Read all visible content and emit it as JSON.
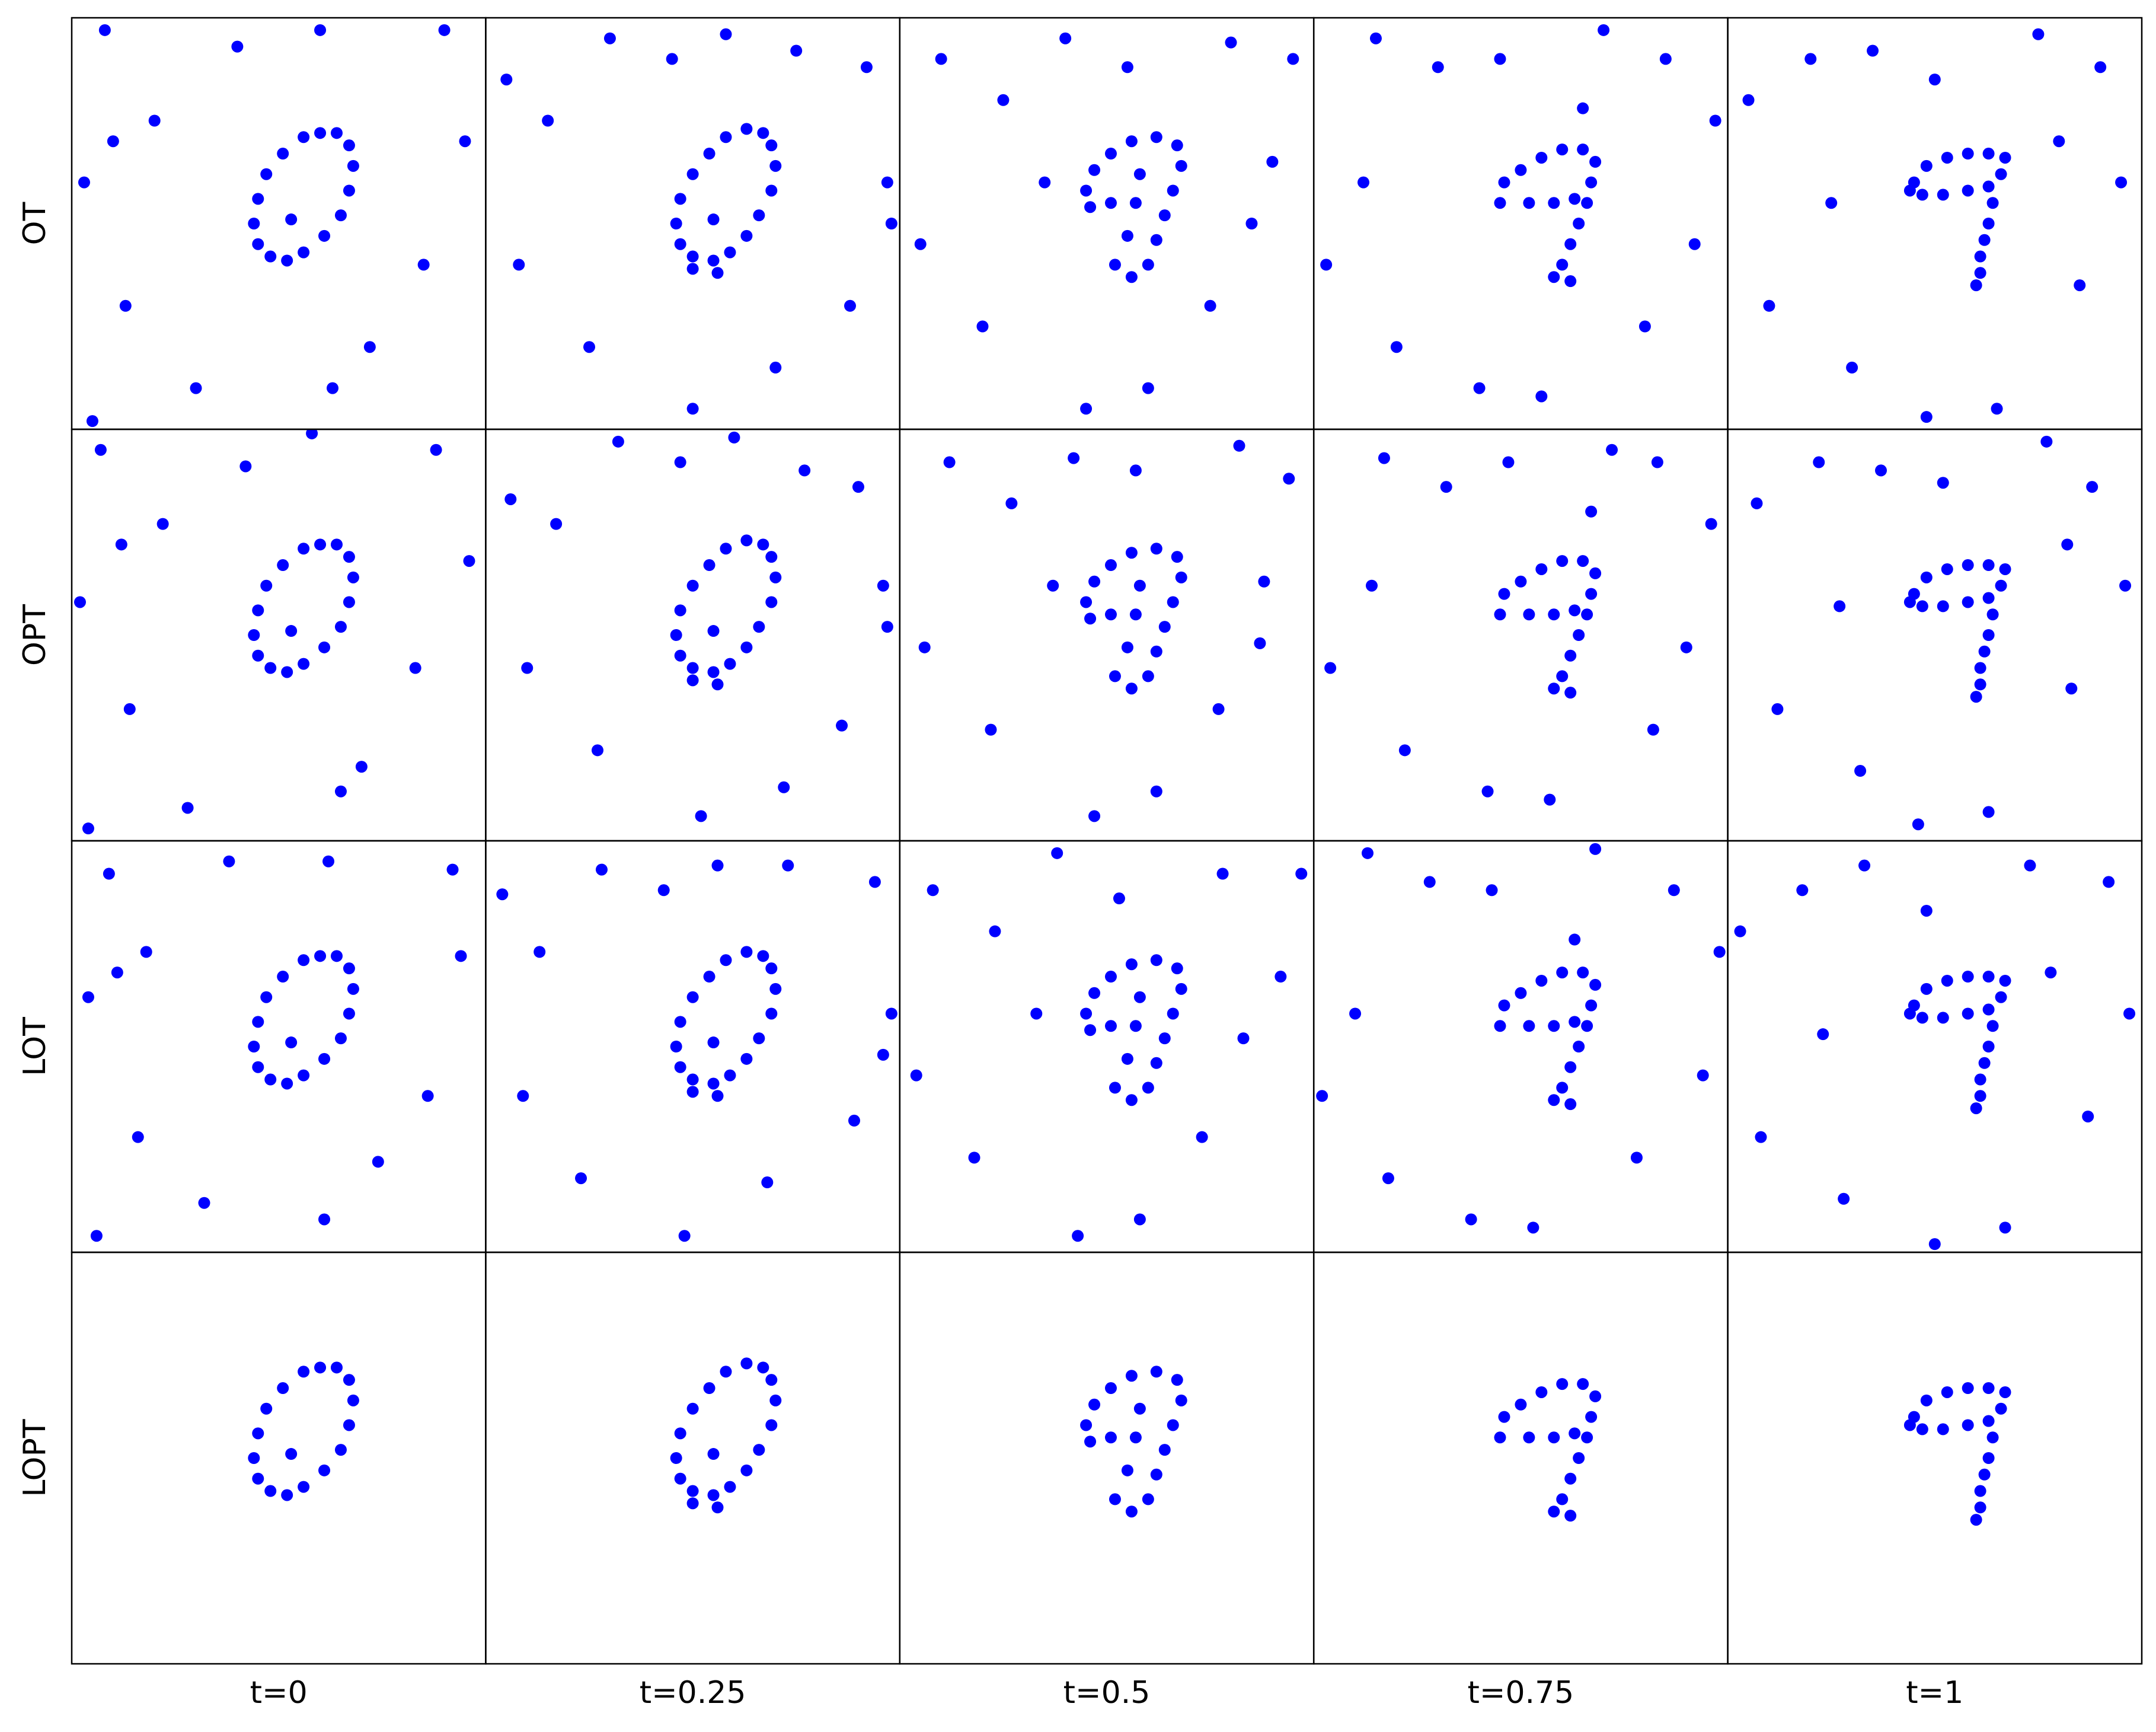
{
  "row_labels": [
    "OT",
    "OPT",
    "LOT",
    "LOPT"
  ],
  "column_labels": [
    "t=0",
    "t=0.25",
    "t=0.5",
    "t=0.75",
    "t=1"
  ],
  "chart_data": [
    {
      "type": "scatter",
      "color": "#0000ff",
      "xlim": [
        0,
        100
      ],
      "ylim": [
        0,
        100
      ],
      "x": [
        64,
        60,
        56,
        51,
        47,
        45,
        44,
        45,
        48,
        52,
        56,
        61,
        65,
        67,
        68,
        67,
        53,
        8,
        13,
        10,
        40,
        60,
        90,
        95,
        85,
        72,
        63,
        30,
        5,
        20,
        3
      ],
      "y": [
        72,
        72,
        71,
        67,
        62,
        56,
        50,
        45,
        42,
        41,
        43,
        47,
        52,
        58,
        64,
        69,
        51,
        97,
        30,
        70,
        93,
        97,
        97,
        70,
        40,
        20,
        10,
        10,
        2,
        75,
        60
      ]
    },
    {
      "type": "scatter",
      "color": "#0000ff",
      "xlim": [
        0,
        100
      ],
      "ylim": [
        0,
        100
      ],
      "x": [
        67,
        63,
        58,
        54,
        50,
        47,
        46,
        47,
        50,
        55,
        59,
        63,
        66,
        69,
        70,
        69,
        55,
        50,
        56,
        5,
        15,
        30,
        45,
        58,
        75,
        92,
        97,
        88,
        70,
        50,
        25,
        8,
        98
      ],
      "y": [
        72,
        73,
        71,
        67,
        62,
        56,
        50,
        45,
        42,
        41,
        43,
        47,
        52,
        58,
        64,
        69,
        51,
        39,
        38,
        85,
        75,
        95,
        90,
        96,
        92,
        88,
        60,
        30,
        15,
        5,
        20,
        40,
        50
      ]
    },
    {
      "type": "scatter",
      "color": "#0000ff",
      "xlim": [
        0,
        100
      ],
      "ylim": [
        0,
        100
      ],
      "x": [
        45,
        47,
        51,
        56,
        62,
        67,
        68,
        66,
        64,
        62,
        60,
        56,
        52,
        55,
        57,
        58,
        51,
        46,
        10,
        25,
        40,
        55,
        80,
        95,
        90,
        75,
        60,
        45,
        20,
        5,
        35,
        85
      ],
      "y": [
        58,
        63,
        67,
        70,
        71,
        69,
        64,
        58,
        52,
        46,
        40,
        37,
        40,
        47,
        55,
        62,
        55,
        54,
        90,
        80,
        95,
        88,
        94,
        90,
        65,
        30,
        10,
        5,
        25,
        45,
        60,
        50
      ]
    },
    {
      "type": "scatter",
      "color": "#0000ff",
      "xlim": [
        0,
        100
      ],
      "ylim": [
        0,
        100
      ],
      "x": [
        45,
        46,
        50,
        55,
        60,
        65,
        68,
        67,
        63,
        58,
        52,
        66,
        64,
        62,
        60,
        58,
        62,
        15,
        30,
        45,
        70,
        85,
        97,
        92,
        80,
        55,
        40,
        20,
        3,
        12,
        65
      ],
      "y": [
        55,
        60,
        63,
        66,
        68,
        68,
        65,
        60,
        56,
        55,
        55,
        55,
        50,
        45,
        40,
        37,
        36,
        95,
        88,
        90,
        97,
        90,
        75,
        45,
        25,
        8,
        10,
        20,
        40,
        60,
        78
      ]
    },
    {
      "type": "scatter",
      "color": "#0000ff",
      "xlim": [
        0,
        100
      ],
      "ylim": [
        0,
        100
      ],
      "x": [
        45,
        48,
        53,
        58,
        63,
        67,
        66,
        63,
        58,
        52,
        47,
        44,
        64,
        63,
        62,
        61,
        61,
        60,
        5,
        20,
        35,
        50,
        75,
        90,
        95,
        85,
        65,
        48,
        30,
        10,
        25,
        80
      ],
      "y": [
        60,
        64,
        66,
        67,
        67,
        66,
        62,
        59,
        58,
        57,
        57,
        58,
        55,
        50,
        46,
        42,
        38,
        35,
        80,
        90,
        92,
        85,
        96,
        88,
        60,
        35,
        5,
        3,
        15,
        30,
        55,
        70
      ]
    },
    {
      "type": "scatter",
      "color": "#0000ff",
      "xlim": [
        0,
        100
      ],
      "ylim": [
        0,
        100
      ],
      "x": [
        64,
        60,
        56,
        51,
        47,
        45,
        44,
        45,
        48,
        52,
        56,
        61,
        65,
        67,
        68,
        67,
        53,
        7,
        14,
        12,
        42,
        58,
        88,
        96,
        83,
        70,
        65,
        28,
        4,
        22,
        2
      ],
      "y": [
        72,
        72,
        71,
        67,
        62,
        56,
        50,
        45,
        42,
        41,
        43,
        47,
        52,
        58,
        64,
        69,
        51,
        95,
        32,
        72,
        91,
        99,
        95,
        68,
        42,
        18,
        12,
        8,
        3,
        77,
        58
      ]
    },
    {
      "type": "scatter",
      "color": "#0000ff",
      "xlim": [
        0,
        100
      ],
      "ylim": [
        0,
        100
      ],
      "x": [
        67,
        63,
        58,
        54,
        50,
        47,
        46,
        47,
        50,
        55,
        59,
        63,
        66,
        69,
        70,
        69,
        55,
        50,
        56,
        6,
        17,
        32,
        47,
        60,
        77,
        90,
        96,
        86,
        72,
        52,
        27,
        10,
        97
      ],
      "y": [
        72,
        73,
        71,
        67,
        62,
        56,
        50,
        45,
        42,
        41,
        43,
        47,
        52,
        58,
        64,
        69,
        51,
        39,
        38,
        83,
        77,
        97,
        92,
        98,
        90,
        86,
        62,
        28,
        13,
        6,
        22,
        42,
        52
      ]
    },
    {
      "type": "scatter",
      "color": "#0000ff",
      "xlim": [
        0,
        100
      ],
      "ylim": [
        0,
        100
      ],
      "x": [
        45,
        47,
        51,
        56,
        62,
        67,
        68,
        66,
        64,
        62,
        60,
        56,
        52,
        55,
        57,
        58,
        51,
        46,
        12,
        27,
        42,
        57,
        82,
        94,
        88,
        77,
        62,
        47,
        22,
        6,
        37,
        87
      ],
      "y": [
        58,
        63,
        67,
        70,
        71,
        69,
        64,
        58,
        52,
        46,
        40,
        37,
        40,
        47,
        55,
        62,
        55,
        54,
        92,
        82,
        93,
        90,
        96,
        88,
        63,
        32,
        12,
        6,
        27,
        47,
        62,
        48
      ]
    },
    {
      "type": "scatter",
      "color": "#0000ff",
      "xlim": [
        0,
        100
      ],
      "ylim": [
        0,
        100
      ],
      "x": [
        45,
        46,
        50,
        55,
        60,
        65,
        68,
        67,
        63,
        58,
        52,
        66,
        64,
        62,
        60,
        58,
        62,
        17,
        32,
        47,
        72,
        83,
        96,
        90,
        82,
        57,
        42,
        22,
        4,
        14,
        67
      ],
      "y": [
        55,
        60,
        63,
        66,
        68,
        68,
        65,
        60,
        56,
        55,
        55,
        55,
        50,
        45,
        40,
        37,
        36,
        93,
        86,
        92,
        95,
        92,
        77,
        47,
        27,
        10,
        12,
        22,
        42,
        62,
        80
      ]
    },
    {
      "type": "scatter",
      "color": "#0000ff",
      "xlim": [
        0,
        100
      ],
      "ylim": [
        0,
        100
      ],
      "x": [
        45,
        48,
        53,
        58,
        63,
        67,
        66,
        63,
        58,
        52,
        47,
        44,
        64,
        63,
        62,
        61,
        61,
        60,
        7,
        22,
        37,
        52,
        77,
        88,
        96,
        83,
        63,
        46,
        32,
        12,
        27,
        82
      ],
      "y": [
        60,
        64,
        66,
        67,
        67,
        66,
        62,
        59,
        58,
        57,
        57,
        58,
        55,
        50,
        46,
        42,
        38,
        35,
        82,
        92,
        90,
        87,
        97,
        86,
        62,
        37,
        7,
        4,
        17,
        32,
        57,
        72
      ]
    },
    {
      "type": "scatter",
      "color": "#0000ff",
      "xlim": [
        0,
        100
      ],
      "ylim": [
        0,
        100
      ],
      "x": [
        64,
        60,
        56,
        51,
        47,
        45,
        44,
        45,
        48,
        52,
        56,
        61,
        65,
        67,
        68,
        67,
        53,
        9,
        16,
        11,
        38,
        62,
        92,
        94,
        86,
        74,
        61,
        32,
        6,
        18,
        4
      ],
      "y": [
        72,
        72,
        71,
        67,
        62,
        56,
        50,
        45,
        42,
        41,
        43,
        47,
        52,
        58,
        64,
        69,
        51,
        92,
        28,
        68,
        95,
        95,
        93,
        72,
        38,
        22,
        8,
        12,
        4,
        73,
        62
      ]
    },
    {
      "type": "scatter",
      "color": "#0000ff",
      "xlim": [
        0,
        100
      ],
      "ylim": [
        0,
        100
      ],
      "x": [
        67,
        63,
        58,
        54,
        50,
        47,
        46,
        47,
        50,
        55,
        59,
        63,
        66,
        69,
        70,
        69,
        55,
        50,
        56,
        4,
        13,
        28,
        43,
        56,
        73,
        94,
        98,
        89,
        68,
        48,
        23,
        9,
        96
      ],
      "y": [
        72,
        73,
        71,
        67,
        62,
        56,
        50,
        45,
        42,
        41,
        43,
        47,
        52,
        58,
        64,
        69,
        51,
        39,
        38,
        87,
        73,
        93,
        88,
        94,
        94,
        90,
        58,
        32,
        17,
        4,
        18,
        38,
        48
      ]
    },
    {
      "type": "scatter",
      "color": "#0000ff",
      "xlim": [
        0,
        100
      ],
      "ylim": [
        0,
        100
      ],
      "x": [
        45,
        47,
        51,
        56,
        62,
        67,
        68,
        66,
        64,
        62,
        60,
        56,
        52,
        55,
        57,
        58,
        51,
        46,
        8,
        23,
        38,
        53,
        78,
        97,
        92,
        73,
        58,
        43,
        18,
        4,
        33,
        83
      ],
      "y": [
        58,
        63,
        67,
        70,
        71,
        69,
        64,
        58,
        52,
        46,
        40,
        37,
        40,
        47,
        55,
        62,
        55,
        54,
        88,
        78,
        97,
        86,
        92,
        92,
        67,
        28,
        8,
        4,
        23,
        43,
        58,
        52
      ]
    },
    {
      "type": "scatter",
      "color": "#0000ff",
      "xlim": [
        0,
        100
      ],
      "ylim": [
        0,
        100
      ],
      "x": [
        45,
        46,
        50,
        55,
        60,
        65,
        68,
        67,
        63,
        58,
        52,
        66,
        64,
        62,
        60,
        58,
        62,
        13,
        28,
        43,
        68,
        87,
        98,
        94,
        78,
        53,
        38,
        18,
        2,
        10,
        63
      ],
      "y": [
        55,
        60,
        63,
        66,
        68,
        68,
        65,
        60,
        56,
        55,
        55,
        55,
        50,
        45,
        40,
        37,
        36,
        97,
        90,
        88,
        98,
        88,
        73,
        43,
        23,
        6,
        8,
        18,
        38,
        58,
        76
      ]
    },
    {
      "type": "scatter",
      "color": "#0000ff",
      "xlim": [
        0,
        100
      ],
      "ylim": [
        0,
        100
      ],
      "x": [
        45,
        48,
        53,
        58,
        63,
        67,
        66,
        63,
        58,
        52,
        47,
        44,
        64,
        63,
        62,
        61,
        61,
        60,
        3,
        18,
        33,
        48,
        73,
        92,
        97,
        87,
        67,
        50,
        28,
        8,
        23,
        78
      ],
      "y": [
        60,
        64,
        66,
        67,
        67,
        66,
        62,
        59,
        58,
        57,
        57,
        58,
        55,
        50,
        46,
        42,
        38,
        35,
        78,
        88,
        94,
        83,
        94,
        90,
        58,
        33,
        6,
        2,
        13,
        28,
        53,
        68
      ]
    },
    {
      "type": "scatter",
      "color": "#0000ff",
      "xlim": [
        0,
        100
      ],
      "ylim": [
        0,
        100
      ],
      "x": [
        64,
        60,
        56,
        51,
        47,
        45,
        44,
        45,
        48,
        52,
        56,
        61,
        65,
        67,
        68,
        67,
        53
      ],
      "y": [
        72,
        72,
        71,
        67,
        62,
        56,
        50,
        45,
        42,
        41,
        43,
        47,
        52,
        58,
        64,
        69,
        51
      ]
    },
    {
      "type": "scatter",
      "color": "#0000ff",
      "xlim": [
        0,
        100
      ],
      "ylim": [
        0,
        100
      ],
      "x": [
        67,
        63,
        58,
        54,
        50,
        47,
        46,
        47,
        50,
        55,
        59,
        63,
        66,
        69,
        70,
        69,
        55,
        50,
        56
      ],
      "y": [
        72,
        73,
        71,
        67,
        62,
        56,
        50,
        45,
        42,
        41,
        43,
        47,
        52,
        58,
        64,
        69,
        51,
        39,
        38
      ]
    },
    {
      "type": "scatter",
      "color": "#0000ff",
      "xlim": [
        0,
        100
      ],
      "ylim": [
        0,
        100
      ],
      "x": [
        45,
        47,
        51,
        56,
        62,
        67,
        68,
        66,
        64,
        62,
        60,
        56,
        52,
        55,
        57,
        58,
        51,
        46
      ],
      "y": [
        58,
        63,
        67,
        70,
        71,
        69,
        64,
        58,
        52,
        46,
        40,
        37,
        40,
        47,
        55,
        62,
        55,
        54
      ]
    },
    {
      "type": "scatter",
      "color": "#0000ff",
      "xlim": [
        0,
        100
      ],
      "ylim": [
        0,
        100
      ],
      "x": [
        45,
        46,
        50,
        55,
        60,
        65,
        68,
        67,
        63,
        58,
        52,
        66,
        64,
        62,
        60,
        58,
        62
      ],
      "y": [
        55,
        60,
        63,
        66,
        68,
        68,
        65,
        60,
        56,
        55,
        55,
        55,
        50,
        45,
        40,
        37,
        36
      ]
    },
    {
      "type": "scatter",
      "color": "#0000ff",
      "xlim": [
        0,
        100
      ],
      "ylim": [
        0,
        100
      ],
      "x": [
        45,
        48,
        53,
        58,
        63,
        67,
        66,
        63,
        58,
        52,
        47,
        44,
        64,
        63,
        62,
        61,
        61,
        60
      ],
      "y": [
        60,
        64,
        66,
        67,
        67,
        66,
        62,
        59,
        58,
        57,
        57,
        58,
        55,
        50,
        46,
        42,
        38,
        35
      ]
    }
  ]
}
